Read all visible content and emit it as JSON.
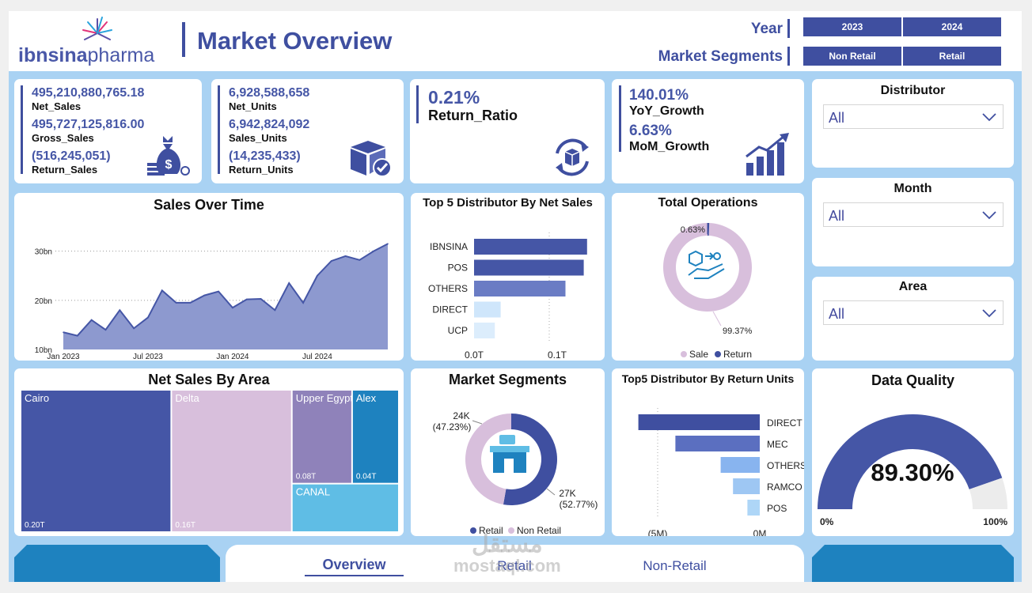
{
  "header": {
    "logo_bold": "ibnsina",
    "logo_light": "pharma",
    "title": "Market Overview",
    "year_label": "Year",
    "years": [
      "2023",
      "2024"
    ],
    "segments_label": "Market Segments",
    "segments": [
      "Non Retail",
      "Retail"
    ]
  },
  "kpi_sales": {
    "net_value": "495,210,880,765.18",
    "net_label": "Net_Sales",
    "gross_value": "495,727,125,816.00",
    "gross_label": "Gross_Sales",
    "return_value": "(516,245,051)",
    "return_label": "Return_Sales"
  },
  "kpi_units": {
    "net_value": "6,928,588,658",
    "net_label": "Net_Units",
    "sales_value": "6,942,824,092",
    "sales_label": "Sales_Units",
    "return_value": "(14,235,433)",
    "return_label": "Return_Units"
  },
  "kpi_return_ratio": {
    "value": "0.21%",
    "label": "Return_Ratio"
  },
  "kpi_growth": {
    "yoy_value": "140.01%",
    "yoy_label": "YoY_Growth",
    "mom_value": "6.63%",
    "mom_label": "MoM_Growth"
  },
  "slicers": {
    "distributor": {
      "label": "Distributor",
      "value": "All"
    },
    "month": {
      "label": "Month",
      "value": "All"
    },
    "area": {
      "label": "Area",
      "value": "All"
    }
  },
  "colors": {
    "primary": "#4556a6",
    "dark_blue": "#3f4fa0",
    "lavender": "#d8bfdc",
    "purple": "#8f82ba",
    "teal": "#1e82bf",
    "light_blue": "#5fbde5",
    "background": "#a9d2f3"
  },
  "bottom_nav": {
    "tabs": [
      "Overview",
      "Retail",
      "Non-Retail"
    ],
    "active": "Overview"
  },
  "watermark": {
    "arabic": "مستقل",
    "latin": "mostaql.com"
  },
  "chart_data": [
    {
      "id": "sales_over_time",
      "type": "area",
      "title": "Sales Over Time",
      "x_ticks": [
        "Jan 2023",
        "Jul 2023",
        "Jan 2024",
        "Jul 2024"
      ],
      "y_ticks": [
        "10bn",
        "20bn",
        "30bn"
      ],
      "ylim": [
        10,
        33
      ],
      "x": [
        "2023-01",
        "2023-02",
        "2023-03",
        "2023-04",
        "2023-05",
        "2023-06",
        "2023-07",
        "2023-08",
        "2023-09",
        "2023-10",
        "2023-11",
        "2023-12",
        "2024-01",
        "2024-02",
        "2024-03",
        "2024-04",
        "2024-05",
        "2024-06",
        "2024-07",
        "2024-08",
        "2024-09",
        "2024-10",
        "2024-11",
        "2024-12"
      ],
      "values": [
        13.5,
        12.8,
        16,
        14,
        18,
        14.3,
        16.5,
        22,
        19.5,
        19.5,
        21,
        21.8,
        18.5,
        20.2,
        20.3,
        18,
        23.5,
        19.5,
        25,
        28,
        29,
        28.2,
        30,
        31.5
      ],
      "grid": true
    },
    {
      "id": "top5_distributor_net_sales",
      "type": "bar",
      "title": "Top 5 Distributor By Net Sales",
      "categories": [
        "IBNSINA",
        "POS",
        "OTHERS",
        "DIRECT",
        "UCP"
      ],
      "values": [
        0.136,
        0.132,
        0.11,
        0.032,
        0.025
      ],
      "x_ticks": [
        "0.0T",
        "0.1T"
      ],
      "colors": [
        "#4556a6",
        "#4556a6",
        "#6a7cc4",
        "#cfe6fb",
        "#dcedfc"
      ]
    },
    {
      "id": "total_operations",
      "type": "pie",
      "title": "Total Operations",
      "labels": [
        "Sale",
        "Return"
      ],
      "values": [
        99.37,
        0.63
      ],
      "display": [
        "99.37%",
        "0.63%"
      ],
      "colors": [
        "#d8bfdc",
        "#3f4fa0"
      ]
    },
    {
      "id": "net_sales_by_area",
      "type": "treemap",
      "title": "Net Sales By Area",
      "labels": [
        "Cairo",
        "Delta",
        "Upper Egypt",
        "Alex",
        "CANAL"
      ],
      "values": [
        0.2,
        0.16,
        0.08,
        0.04,
        0.02
      ],
      "display": [
        "0.20T",
        "0.16T",
        "0.08T",
        "0.04T",
        ""
      ],
      "colors": [
        "#4556a6",
        "#d8bfdc",
        "#8f82ba",
        "#1e82bf",
        "#5fbde5"
      ]
    },
    {
      "id": "market_segments",
      "type": "pie",
      "title": "Market Segments",
      "labels": [
        "Retail",
        "Non Retail"
      ],
      "values": [
        52.77,
        47.23
      ],
      "display": [
        "27K\n(52.77%)",
        "24K\n(47.23%)"
      ],
      "colors": [
        "#3f4fa0",
        "#d8bfdc"
      ]
    },
    {
      "id": "top5_distributor_return_units",
      "type": "bar",
      "title": "Top5 Distributor By Return Units",
      "categories": [
        "DIRECT",
        "MEC",
        "OTHERS",
        "RAMCO",
        "POS"
      ],
      "values": [
        -5.9,
        -4.1,
        -1.9,
        -1.3,
        -0.6
      ],
      "x_ticks": [
        "(5M)",
        "0M"
      ],
      "colors": [
        "#3f4fa0",
        "#5b6fc0",
        "#88b4ef",
        "#9ec7f3",
        "#aed6f7"
      ]
    },
    {
      "id": "data_quality",
      "type": "gauge",
      "title": "Data Quality",
      "value": 89.3,
      "display": "89.30%",
      "min_label": "0%",
      "max_label": "100%",
      "colors": [
        "#4556a6",
        "#ececec"
      ]
    }
  ]
}
